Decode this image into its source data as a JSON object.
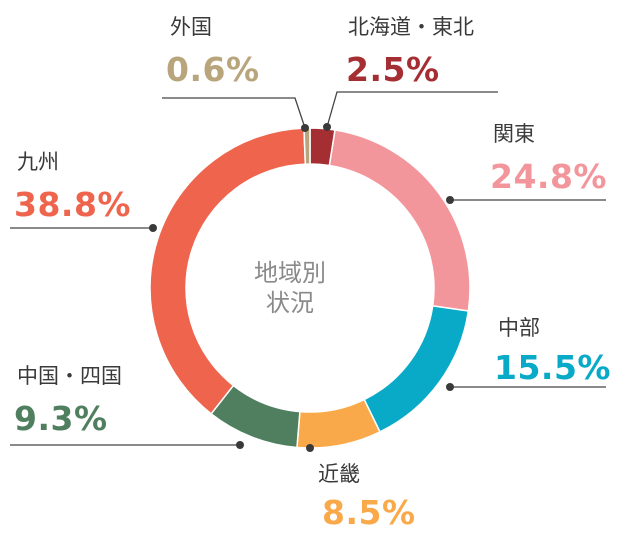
{
  "chart_data": {
    "type": "donut",
    "center_label": [
      "地域別",
      "状況"
    ],
    "unit": "%",
    "slices": [
      {
        "name": "北海道・東北",
        "value": 2.5,
        "label": "2.5%",
        "color": "#a42e32"
      },
      {
        "name": "関東",
        "value": 24.8,
        "label": "24.8%",
        "color": "#f3969b"
      },
      {
        "name": "中部",
        "value": 15.5,
        "label": "15.5%",
        "color": "#09a9c8"
      },
      {
        "name": "近畿",
        "value": 8.5,
        "label": "8.5%",
        "color": "#f9a949"
      },
      {
        "name": "中国・四国",
        "value": 9.3,
        "label": "9.3%",
        "color": "#4f7f5e"
      },
      {
        "name": "九州",
        "value": 38.8,
        "label": "38.8%",
        "color": "#ef644d"
      },
      {
        "name": "外国",
        "value": 0.6,
        "label": "0.6%",
        "color": "#b8a57c"
      }
    ]
  }
}
